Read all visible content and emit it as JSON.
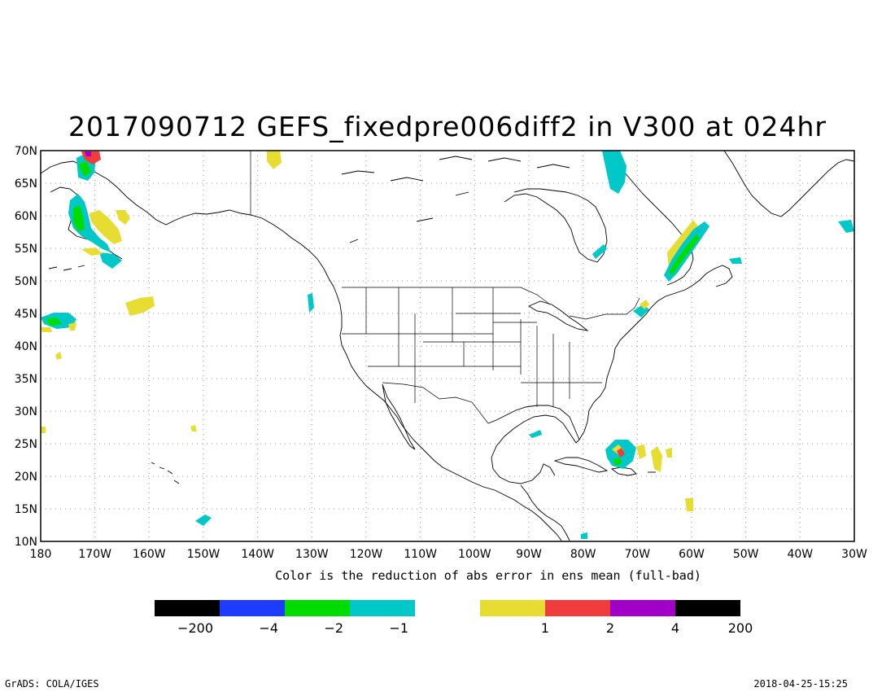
{
  "title": "2017090712 GEFS_fixedpre006diff2 in V300 at 024hr",
  "map": {
    "lon_range": [
      -180,
      -30
    ],
    "lat_range": [
      10,
      70
    ],
    "lon_ticks": [
      "180",
      "170W",
      "160W",
      "150W",
      "140W",
      "130W",
      "120W",
      "110W",
      "100W",
      "90W",
      "80W",
      "70W",
      "60W",
      "50W",
      "40W",
      "30W"
    ],
    "lat_ticks": [
      "70N",
      "65N",
      "60N",
      "55N",
      "50N",
      "45N",
      "40N",
      "35N",
      "30N",
      "25N",
      "20N",
      "15N",
      "10N"
    ],
    "grid": true,
    "xlabel": "Color is the reduction of abs error in ens mean (full-bad)"
  },
  "colorbar": {
    "bins": [
      {
        "color": "#000000"
      },
      {
        "color": "#1e3cff"
      },
      {
        "color": "#00dc00"
      },
      {
        "color": "#00c8c8"
      },
      {
        "color": "#ffffff"
      },
      {
        "color": "#e6dc32"
      },
      {
        "color": "#f03c3c"
      },
      {
        "color": "#a000c8"
      },
      {
        "color": "#000000"
      }
    ],
    "labels": [
      "-200",
      "-4",
      "-2",
      "-1",
      "1",
      "2",
      "4",
      "200"
    ]
  },
  "colors": {
    "cyan": "#00c8c8",
    "yellow": "#e6dc32",
    "green": "#00dc00",
    "red": "#f03c3c",
    "purple": "#a000c8"
  },
  "footer": {
    "left": "GrADS: COLA/IGES",
    "right": "2018-04-25-15:25"
  }
}
